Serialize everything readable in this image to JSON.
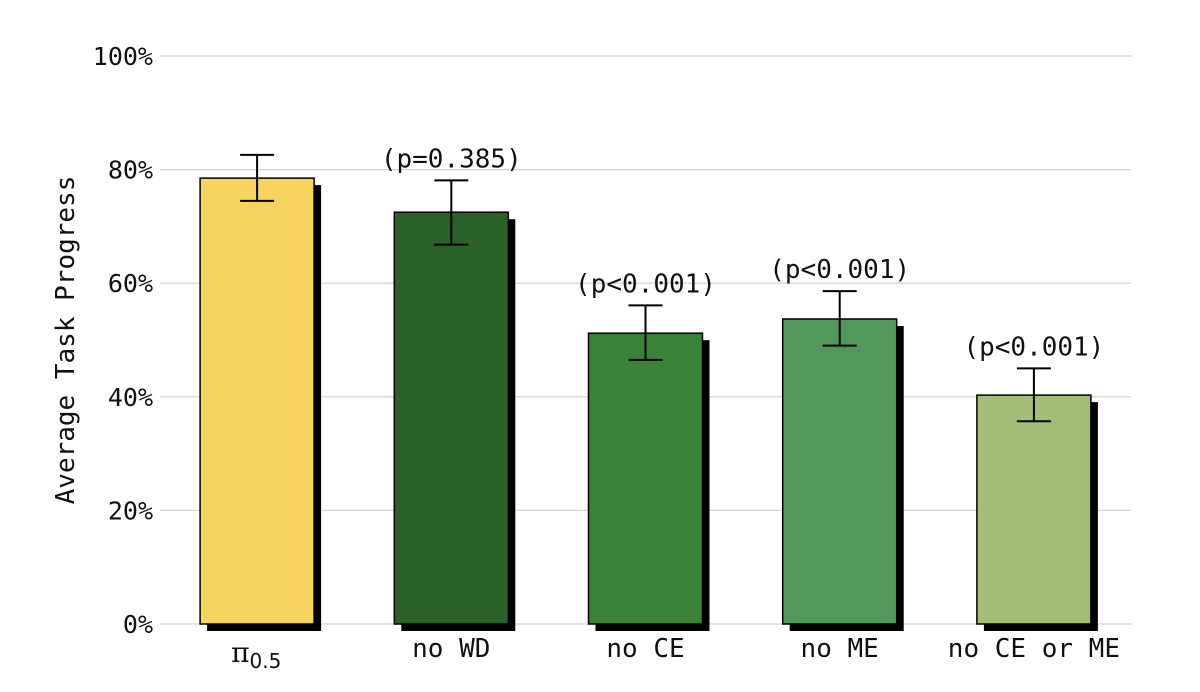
{
  "chart_data": {
    "type": "bar",
    "title": "",
    "xlabel": "",
    "ylabel": "Average Task Progress",
    "ylim": [
      0,
      100
    ],
    "yticks": [
      0,
      20,
      40,
      60,
      80,
      100
    ],
    "ytick_labels": [
      "0%",
      "20%",
      "40%",
      "60%",
      "80%",
      "100%"
    ],
    "grid": true,
    "categories": [
      {
        "main": "π",
        "sub": "0.5"
      },
      {
        "main": "no WD"
      },
      {
        "main": "no CE"
      },
      {
        "main": "no ME"
      },
      {
        "main": "no CE or ME"
      }
    ],
    "values": [
      78.5,
      72.5,
      51.2,
      53.7,
      40.3
    ],
    "error_low": [
      74.5,
      66.8,
      46.5,
      49.0,
      35.7
    ],
    "error_high": [
      82.6,
      78.1,
      56.1,
      58.6,
      45.0
    ],
    "annotations": [
      "",
      "(p=0.385)",
      "(p<0.001)",
      "(p<0.001)",
      "(p<0.001)"
    ],
    "colors": [
      "#f7d45e",
      "#2c6129",
      "#3a8238",
      "#52985a",
      "#a3bd78"
    ],
    "shadow_color": "#000000",
    "grid_color": "#d4d4d4"
  }
}
